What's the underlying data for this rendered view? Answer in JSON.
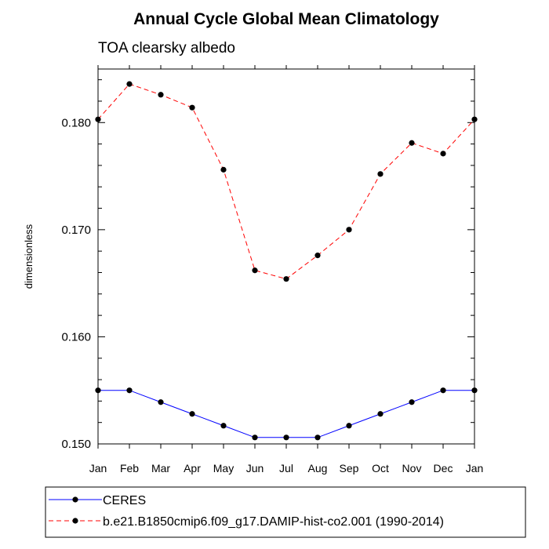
{
  "chart_data": {
    "type": "line",
    "title": "Annual Cycle Global Mean Climatology",
    "subtitle": "TOA clearsky albedo",
    "ylabel": "dimensionless",
    "xlabel": "",
    "categories": [
      "Jan",
      "Feb",
      "Mar",
      "Apr",
      "May",
      "Jun",
      "Jul",
      "Aug",
      "Sep",
      "Oct",
      "Nov",
      "Dec",
      "Jan"
    ],
    "ylim": [
      0.15,
      0.185
    ],
    "yticks": [
      0.15,
      0.16,
      0.17,
      0.18
    ],
    "ytick_labels": [
      "0.150",
      "0.160",
      "0.170",
      "0.180"
    ],
    "grid": false,
    "legend_position": "bottom",
    "series": [
      {
        "name": "CERES",
        "color": "#0000ff",
        "line_style": "solid",
        "values": [
          0.155,
          0.155,
          0.1539,
          0.1528,
          0.1517,
          0.1506,
          0.1506,
          0.1506,
          0.1517,
          0.1528,
          0.1539,
          0.155,
          0.155
        ]
      },
      {
        "name": "b.e21.B1850cmip6.f09_g17.DAMIP-hist-co2.001 (1990-2014)",
        "color": "#ff0000",
        "line_style": "dashed",
        "values": [
          0.1803,
          0.1836,
          0.1826,
          0.1814,
          0.1756,
          0.1662,
          0.1654,
          0.1676,
          0.17,
          0.1752,
          0.1781,
          0.1771,
          0.1803
        ]
      }
    ]
  }
}
